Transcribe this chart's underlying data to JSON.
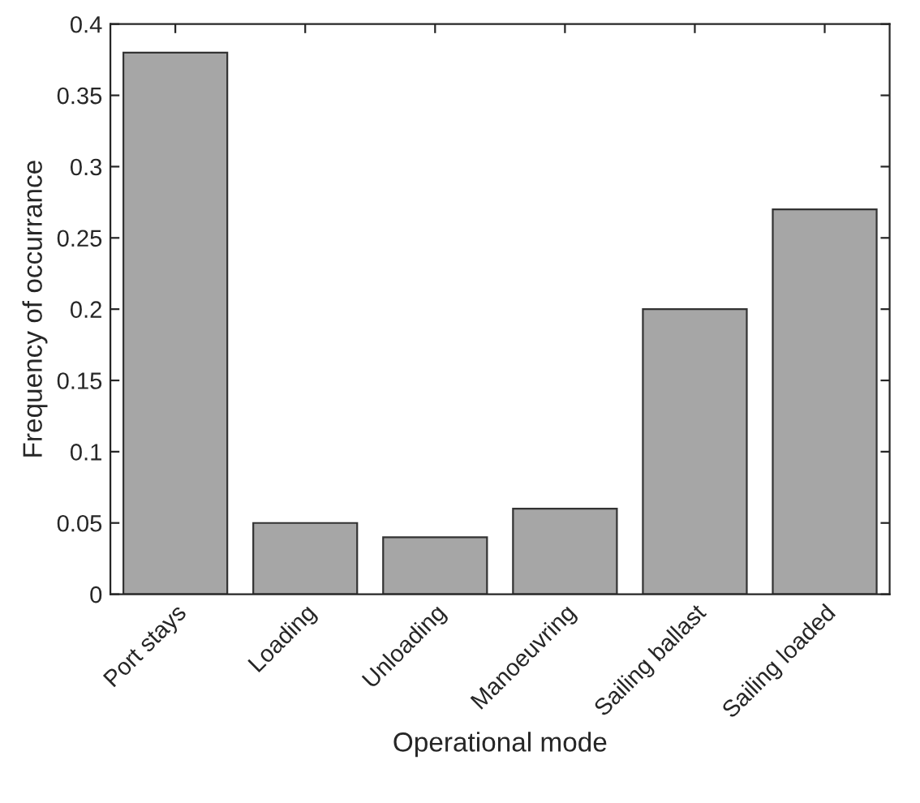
{
  "chart_data": {
    "type": "bar",
    "xlabel": "Operational mode",
    "ylabel": "Frequency of occurrance",
    "categories": [
      "Port stays",
      "Loading",
      "Unloading",
      "Manoeuvring",
      "Sailing ballast",
      "Sailing loaded"
    ],
    "values": [
      0.38,
      0.05,
      0.04,
      0.06,
      0.2,
      0.27
    ],
    "color": "#a6a6a6",
    "ylim": [
      0,
      0.4
    ],
    "yticks": [
      0,
      0.05,
      0.1,
      0.15,
      0.2,
      0.25,
      0.3,
      0.35,
      0.4
    ],
    "grid": false,
    "legend": false
  }
}
